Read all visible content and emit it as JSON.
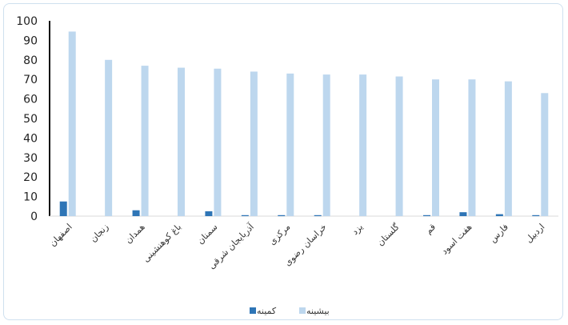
{
  "chart_data": {
    "type": "bar",
    "title": "",
    "xlabel": "",
    "ylabel": "",
    "ylim": [
      0,
      100
    ],
    "yticks": [
      0,
      10,
      20,
      30,
      40,
      50,
      60,
      70,
      80,
      90,
      100
    ],
    "grid": false,
    "legend_position": "bottom",
    "categories": [
      "اصفهان",
      "زنجان",
      "همدان",
      "باغ کوهنشینی",
      "سمنان",
      "آذربایجان شرقی",
      "مرکزی",
      "خراسان رضوی",
      "یزد",
      "گلستان",
      "قم",
      "هفت اسود",
      "فارس",
      "اردبیل"
    ],
    "series": [
      {
        "name": "کمینه",
        "color": "#2e75b6",
        "values": [
          7.5,
          0,
          3,
          0,
          2.5,
          0.5,
          0.5,
          0.5,
          0,
          0,
          0.5,
          2,
          1,
          0.5
        ]
      },
      {
        "name": "بیشینه",
        "color": "#bdd7ee",
        "values": [
          94.5,
          80,
          77,
          76,
          75.5,
          74,
          73,
          72.5,
          72.5,
          71.5,
          70,
          70,
          69,
          63
        ]
      }
    ]
  }
}
